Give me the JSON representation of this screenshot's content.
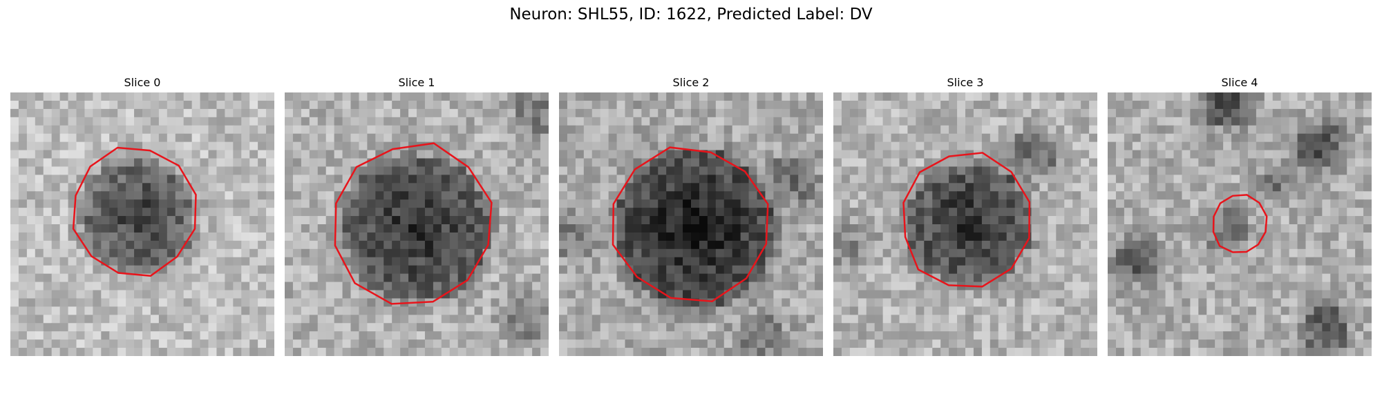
{
  "title": "Neuron: SHL55, ID: 1622, Predicted Label: DV",
  "panels": [
    {
      "title": "Slice 0"
    },
    {
      "title": "Slice 1"
    },
    {
      "title": "Slice 2"
    },
    {
      "title": "Slice 3"
    },
    {
      "title": "Slice 4"
    }
  ],
  "contour_color": "#e8141b"
}
